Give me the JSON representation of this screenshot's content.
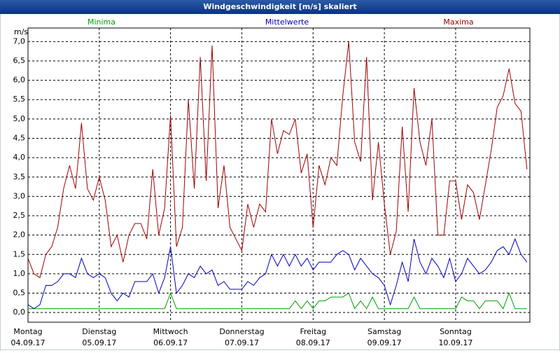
{
  "chart_data": {
    "type": "line",
    "title": "Windgeschwindigkeit [m/s] skaliert",
    "ylabel": "m/s",
    "x": [
      0,
      2,
      4,
      6,
      8,
      10,
      12,
      14,
      16,
      18,
      20,
      22,
      24,
      26,
      28,
      30,
      32,
      34,
      36,
      38,
      40,
      42,
      44,
      46,
      48,
      50,
      52,
      54,
      56,
      58,
      60,
      62,
      64,
      66,
      68,
      70,
      72,
      74,
      76,
      78,
      80,
      82,
      84,
      86,
      88,
      90,
      92,
      94,
      96,
      98,
      100,
      102,
      104,
      106,
      108,
      110,
      112,
      114,
      116,
      118,
      120,
      122,
      124,
      126,
      128,
      130,
      132,
      134,
      136,
      138,
      140,
      142,
      144,
      146,
      148,
      150,
      152,
      154,
      156,
      158,
      160,
      162,
      164,
      166,
      168
    ],
    "xlim": [
      0,
      169
    ],
    "xticks": [
      {
        "value": 0,
        "label": "Montag"
      },
      {
        "value": 24,
        "label": "Dienstag"
      },
      {
        "value": 48,
        "label": "Mittwoch"
      },
      {
        "value": 72,
        "label": "Donnerstag"
      },
      {
        "value": 96,
        "label": "Freitag"
      },
      {
        "value": 120,
        "label": "Samstag"
      },
      {
        "value": 144,
        "label": "Sonntag"
      }
    ],
    "xtick_dates": [
      "04.09.17",
      "05.09.17",
      "06.09.17",
      "07.09.17",
      "08.09.17",
      "09.09.17",
      "10.09.17"
    ],
    "ylim": [
      -0.25,
      7.35
    ],
    "yticks": [
      {
        "value": 0,
        "label": "0,0"
      },
      {
        "value": 0.5,
        "label": "0,5"
      },
      {
        "value": 1,
        "label": "1,0"
      },
      {
        "value": 1.5,
        "label": "1,5"
      },
      {
        "value": 2,
        "label": "2,0"
      },
      {
        "value": 2.5,
        "label": "2,5"
      },
      {
        "value": 3,
        "label": "3,0"
      },
      {
        "value": 3.5,
        "label": "3,5"
      },
      {
        "value": 4,
        "label": "4,0"
      },
      {
        "value": 4.5,
        "label": "4,5"
      },
      {
        "value": 5,
        "label": "5,0"
      },
      {
        "value": 5.5,
        "label": "5,5"
      },
      {
        "value": 6,
        "label": "6,0"
      },
      {
        "value": 6.5,
        "label": "6,5"
      },
      {
        "value": 7,
        "label": "7,0"
      }
    ],
    "grid": true,
    "series": [
      {
        "name": "Minima",
        "color": "#00a000",
        "values": [
          0.1,
          0.1,
          0.1,
          0.1,
          0.1,
          0.1,
          0.1,
          0.1,
          0.1,
          0.1,
          0.1,
          0.1,
          0.1,
          0.1,
          0.1,
          0.1,
          0.1,
          0.1,
          0.1,
          0.1,
          0.1,
          0.1,
          0.1,
          0.1,
          0.5,
          0.1,
          0.1,
          0.1,
          0.1,
          0.1,
          0.1,
          0.1,
          0.1,
          0.1,
          0.1,
          0.1,
          0.1,
          0.1,
          0.1,
          0.1,
          0.1,
          0.1,
          0.1,
          0.1,
          0.1,
          0.3,
          0.1,
          0.3,
          0.1,
          0.3,
          0.3,
          0.4,
          0.4,
          0.4,
          0.5,
          0.1,
          0.3,
          0.1,
          0.4,
          0.1,
          0.1,
          0.1,
          0.1,
          0.1,
          0.1,
          0.4,
          0.1,
          0.1,
          0.1,
          0.1,
          0.1,
          0.1,
          0.1,
          0.4,
          0.3,
          0.3,
          0.1,
          0.3,
          0.3,
          0.3,
          0.1,
          0.5,
          0.1,
          0.1,
          0.1
        ]
      },
      {
        "name": "Mittelwerte",
        "color": "#0000c0",
        "values": [
          0.2,
          0.1,
          0.2,
          0.7,
          0.7,
          0.8,
          1.0,
          1.0,
          0.9,
          1.4,
          1.0,
          0.9,
          1.0,
          0.9,
          0.5,
          0.3,
          0.5,
          0.4,
          0.8,
          0.8,
          0.8,
          1.0,
          0.5,
          0.9,
          1.7,
          0.5,
          0.7,
          1.0,
          0.9,
          1.2,
          1.0,
          1.1,
          0.7,
          0.8,
          0.6,
          0.6,
          0.6,
          0.8,
          0.7,
          0.9,
          1.0,
          1.5,
          1.2,
          1.5,
          1.2,
          1.5,
          1.2,
          1.4,
          1.1,
          1.3,
          1.3,
          1.3,
          1.5,
          1.6,
          1.5,
          1.1,
          1.4,
          1.2,
          1.0,
          0.9,
          0.7,
          0.2,
          0.7,
          1.3,
          0.8,
          1.9,
          1.3,
          1.0,
          1.4,
          1.2,
          0.9,
          1.4,
          0.8,
          1.0,
          1.4,
          1.2,
          1.0,
          1.1,
          1.3,
          1.6,
          1.7,
          1.5,
          1.9,
          1.5,
          1.3
        ]
      },
      {
        "name": "Maxima",
        "color": "#a00000",
        "values": [
          1.4,
          1.0,
          0.9,
          1.5,
          1.7,
          2.2,
          3.2,
          3.8,
          3.2,
          4.9,
          3.2,
          2.9,
          3.5,
          2.9,
          1.7,
          2.0,
          1.3,
          2.0,
          2.3,
          2.3,
          1.9,
          3.7,
          2.0,
          2.7,
          5.1,
          1.7,
          2.2,
          5.5,
          3.2,
          6.6,
          3.4,
          6.9,
          2.7,
          3.8,
          2.2,
          1.9,
          1.6,
          2.8,
          2.2,
          2.8,
          2.6,
          5.0,
          4.1,
          4.7,
          4.6,
          5.0,
          3.6,
          4.1,
          2.2,
          3.8,
          3.3,
          4.0,
          3.8,
          5.6,
          7.0,
          4.4,
          3.9,
          6.6,
          2.9,
          4.4,
          2.8,
          1.5,
          2.1,
          4.8,
          2.6,
          5.8,
          4.4,
          3.8,
          5.0,
          2.0,
          2.0,
          3.4,
          3.4,
          2.4,
          3.3,
          3.1,
          2.4,
          3.3,
          4.2,
          5.3,
          5.6,
          6.3,
          5.4,
          5.2,
          3.7
        ]
      }
    ]
  }
}
